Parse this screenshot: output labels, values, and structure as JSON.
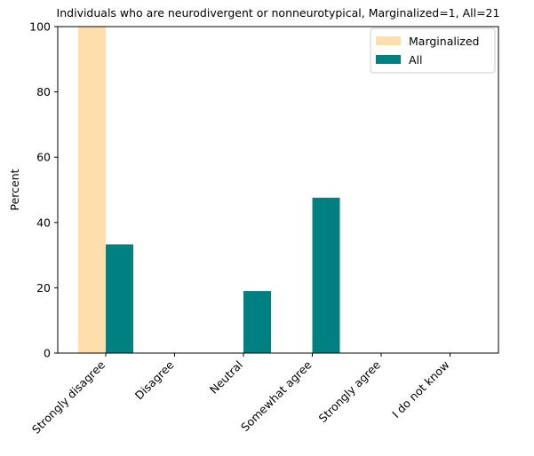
{
  "chart_data": {
    "type": "bar",
    "title": "Individuals who are neurodivergent or nonneurotypical, Marginalized=1, All=21",
    "xlabel": "",
    "ylabel": "Percent",
    "ylim": [
      0,
      100
    ],
    "yticks": [
      0,
      20,
      40,
      60,
      80,
      100
    ],
    "categories": [
      "Strongly disagree",
      "Disagree",
      "Neutral",
      "Somewhat agree",
      "Strongly agree",
      "I do not know"
    ],
    "series": [
      {
        "name": "Marginalized",
        "color": "#ffdead",
        "values": [
          100,
          0,
          0,
          0,
          0,
          0
        ]
      },
      {
        "name": "All",
        "color": "#008080",
        "values": [
          33.3,
          0,
          19.0,
          47.6,
          0,
          0
        ]
      }
    ],
    "legend": "top-right",
    "grid": false
  }
}
